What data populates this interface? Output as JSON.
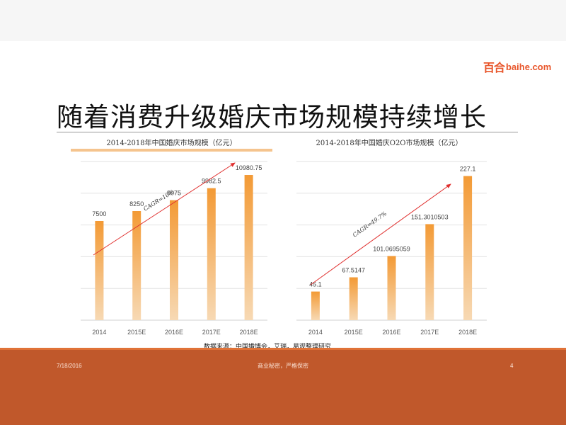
{
  "logo": {
    "mark": "百合",
    "text": "baihe.com"
  },
  "page_title": "随着消费升级婚庆市场规模持续增长",
  "source_note": "数据来源：中国婚博会，艾瑞，易观整理研究",
  "footer": {
    "date": "7/18/2016",
    "center": "商业秘密，严格保密",
    "page": "4"
  },
  "colors": {
    "bar_top": "#f39a35",
    "bar_bottom": "#f7d9b4",
    "arrow": "#e0302f",
    "footer": "#c0582b"
  },
  "chart_data": [
    {
      "type": "bar",
      "title": "2014-2018年中国婚庆市场规模（亿元）",
      "categories": [
        "2014",
        "2015E",
        "2016E",
        "2017E",
        "2018E"
      ],
      "values": [
        7500,
        8250,
        9075,
        9982.5,
        10980.75
      ],
      "value_labels": [
        "7500",
        "8250",
        "9075",
        "9982.5",
        "10980.75"
      ],
      "annotation": "CAGR=10%",
      "ylim": [
        0,
        12000
      ],
      "grid": true
    },
    {
      "type": "bar",
      "title": "2014-2018年中国婚庆O2O市场规模（亿元）",
      "categories": [
        "2014",
        "2015E",
        "2016E",
        "2017E",
        "2018E"
      ],
      "values": [
        45.1,
        67.5147,
        101.0695059,
        151.3010503,
        227.1
      ],
      "value_labels": [
        "45.1",
        "67.5147",
        "101.0695059",
        "151.3010503",
        "227.1"
      ],
      "annotation": "CAGR=49.7%",
      "ylim": [
        0,
        250
      ],
      "grid": true
    }
  ]
}
